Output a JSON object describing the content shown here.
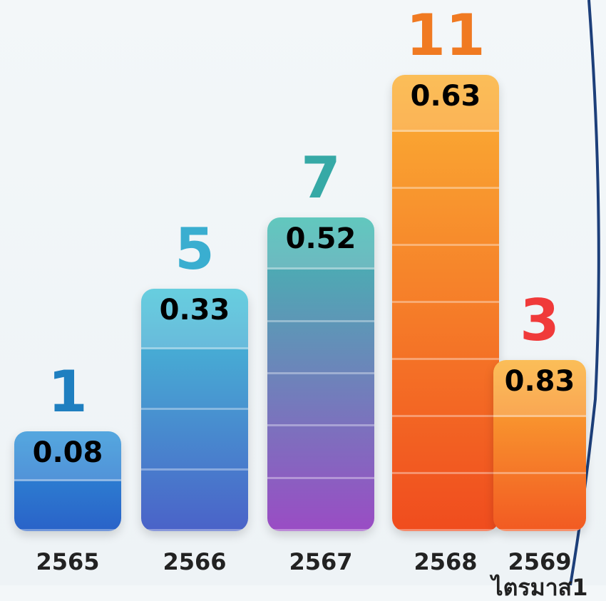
{
  "chart_data": {
    "type": "bar",
    "categories": [
      "2565",
      "2566",
      "2567",
      "2568",
      "2569\nไตรมาส1"
    ],
    "counts": [
      1,
      5,
      7,
      11,
      3
    ],
    "values": [
      0.08,
      0.33,
      0.52,
      0.63,
      0.83
    ],
    "count_colors": [
      "#1f7fc0",
      "#3aaed0",
      "#36a9a6",
      "#f07a22",
      "#f03a3a"
    ],
    "bar_colors": [
      [
        "#2f94d8",
        "#2a62c8"
      ],
      [
        "#46c4d8",
        "#4a62c8"
      ],
      [
        "#3fbcb0",
        "#9a4cc4"
      ],
      [
        "#fbb034",
        "#f04c1e"
      ],
      [
        "#fbb034",
        "#f25a22"
      ]
    ]
  }
}
